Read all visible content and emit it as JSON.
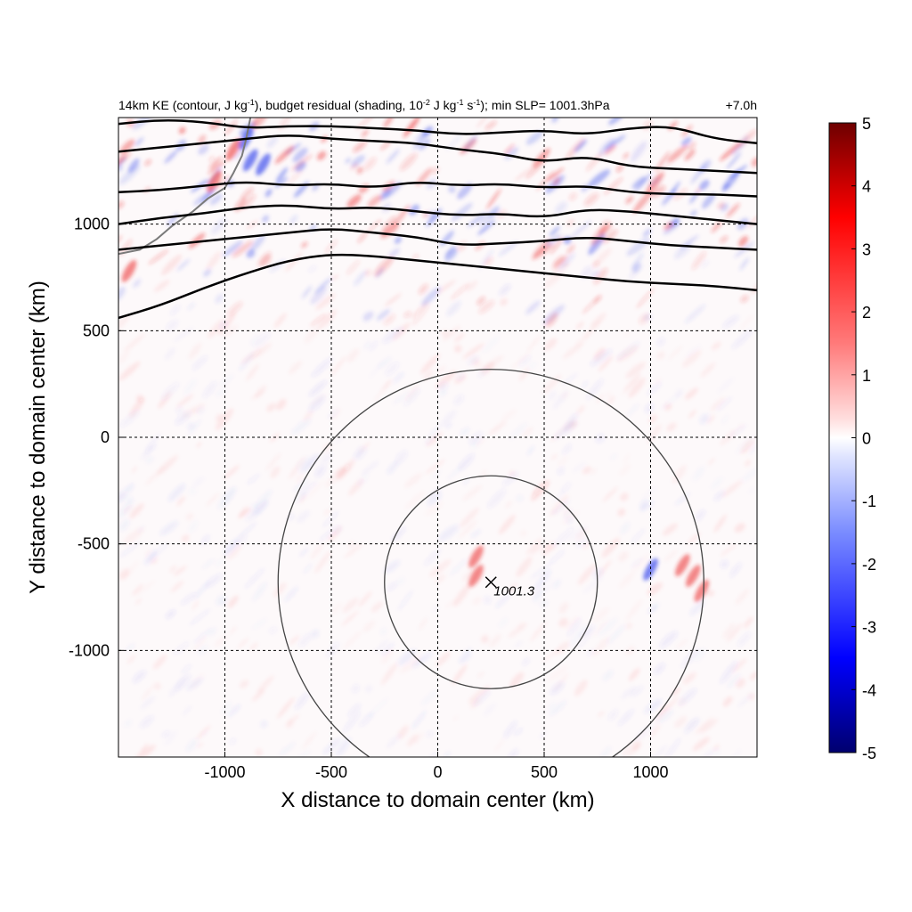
{
  "chart_data": {
    "type": "heatmap",
    "title_parts": {
      "a": "14km KE (contour, J kg",
      "a_sup": "-1",
      "b": "), budget residual (shading, 10",
      "b_sup": "-2",
      "c": " J kg",
      "c_sup": "-1",
      "d": " s",
      "d_sup": "-1",
      "e": "); min SLP= 1001.3hPa"
    },
    "lead_time": "+7.0h",
    "xlabel": "X distance to domain center (km)",
    "ylabel": "Y distance to domain center (km)",
    "xlim": [
      -1500,
      1500
    ],
    "ylim": [
      -1500,
      1500
    ],
    "xticks": [
      -1000,
      -500,
      0,
      500,
      1000
    ],
    "yticks": [
      -1000,
      -500,
      0,
      500,
      1000
    ],
    "xtick_labels": [
      "-1000",
      "-500",
      "0",
      "500",
      "1000"
    ],
    "ytick_labels": [
      "-1000",
      "-500",
      "0",
      "500",
      "1000"
    ],
    "grid": true,
    "colorbar": {
      "min": -5,
      "max": 5,
      "ticks": [
        5,
        4,
        3,
        2,
        1,
        0,
        -1,
        -2,
        -3,
        -4,
        -5
      ],
      "tick_labels": [
        "5",
        "4",
        "3",
        "2",
        "1",
        "0",
        "-1",
        "-2",
        "-3",
        "-4",
        "-5"
      ],
      "colormap": "blue-white-red"
    },
    "storm_center": {
      "x": 250,
      "y": -680,
      "label": "1001.3"
    },
    "range_rings_km": [
      500,
      1000
    ],
    "ke_contours_y_at_x": [
      {
        "name": "c1",
        "points": [
          [
            -1500,
            560
          ],
          [
            -1300,
            620
          ],
          [
            -1100,
            700
          ],
          [
            -900,
            770
          ],
          [
            -700,
            830
          ],
          [
            -500,
            860
          ],
          [
            -300,
            850
          ],
          [
            -100,
            830
          ],
          [
            100,
            810
          ],
          [
            300,
            790
          ],
          [
            500,
            770
          ],
          [
            700,
            750
          ],
          [
            900,
            730
          ],
          [
            1100,
            720
          ],
          [
            1300,
            710
          ],
          [
            1500,
            690
          ]
        ]
      },
      {
        "name": "c2",
        "points": [
          [
            -1500,
            880
          ],
          [
            -1300,
            900
          ],
          [
            -1100,
            920
          ],
          [
            -900,
            940
          ],
          [
            -700,
            960
          ],
          [
            -500,
            980
          ],
          [
            -300,
            960
          ],
          [
            -100,
            940
          ],
          [
            100,
            900
          ],
          [
            300,
            910
          ],
          [
            500,
            920
          ],
          [
            700,
            940
          ],
          [
            900,
            920
          ],
          [
            1100,
            900
          ],
          [
            1300,
            890
          ],
          [
            1500,
            880
          ]
        ]
      },
      {
        "name": "c3",
        "points": [
          [
            -1500,
            1000
          ],
          [
            -1300,
            1030
          ],
          [
            -1100,
            1050
          ],
          [
            -900,
            1080
          ],
          [
            -700,
            1090
          ],
          [
            -500,
            1070
          ],
          [
            -300,
            1080
          ],
          [
            -100,
            1060
          ],
          [
            100,
            1040
          ],
          [
            300,
            1050
          ],
          [
            500,
            1030
          ],
          [
            700,
            1070
          ],
          [
            900,
            1060
          ],
          [
            1100,
            1040
          ],
          [
            1300,
            1020
          ],
          [
            1500,
            1000
          ]
        ]
      },
      {
        "name": "c4",
        "points": [
          [
            -1500,
            1150
          ],
          [
            -1300,
            1160
          ],
          [
            -1100,
            1180
          ],
          [
            -900,
            1200
          ],
          [
            -700,
            1180
          ],
          [
            -500,
            1190
          ],
          [
            -300,
            1170
          ],
          [
            -100,
            1200
          ],
          [
            100,
            1180
          ],
          [
            300,
            1190
          ],
          [
            500,
            1170
          ],
          [
            700,
            1180
          ],
          [
            900,
            1150
          ],
          [
            1100,
            1140
          ],
          [
            1300,
            1140
          ],
          [
            1500,
            1130
          ]
        ]
      },
      {
        "name": "c5",
        "points": [
          [
            -1500,
            1340
          ],
          [
            -1300,
            1360
          ],
          [
            -1100,
            1380
          ],
          [
            -900,
            1400
          ],
          [
            -700,
            1420
          ],
          [
            -500,
            1400
          ],
          [
            -300,
            1390
          ],
          [
            -100,
            1380
          ],
          [
            100,
            1350
          ],
          [
            300,
            1330
          ],
          [
            500,
            1290
          ],
          [
            700,
            1320
          ],
          [
            900,
            1270
          ],
          [
            1100,
            1260
          ],
          [
            1300,
            1250
          ],
          [
            1500,
            1240
          ]
        ]
      },
      {
        "name": "c6",
        "points": [
          [
            -1500,
            1470
          ],
          [
            -1300,
            1490
          ],
          [
            -1100,
            1480
          ],
          [
            -900,
            1450
          ],
          [
            -700,
            1460
          ],
          [
            -500,
            1460
          ],
          [
            -300,
            1450
          ],
          [
            -100,
            1440
          ],
          [
            100,
            1420
          ],
          [
            300,
            1430
          ],
          [
            500,
            1440
          ],
          [
            700,
            1420
          ],
          [
            900,
            1450
          ],
          [
            1100,
            1460
          ],
          [
            1300,
            1400
          ],
          [
            1500,
            1380
          ]
        ]
      }
    ]
  }
}
